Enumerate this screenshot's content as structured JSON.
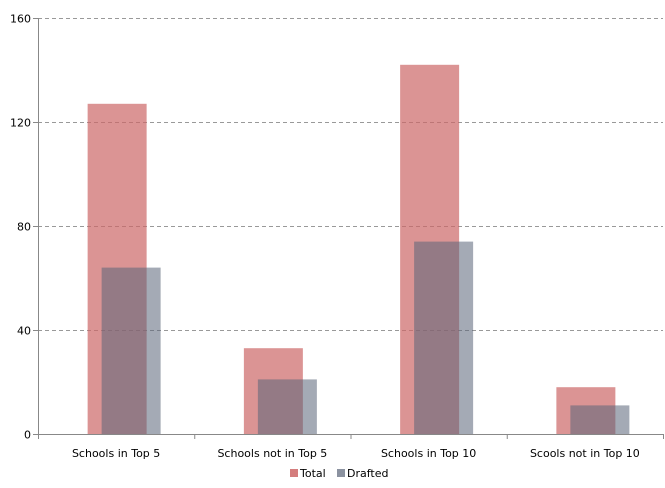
{
  "chart_data": {
    "type": "bar",
    "categories": [
      "Schools in Top 5",
      "Schools not in Top 5",
      "Schools  in Top 10",
      "Scools not in Top 10"
    ],
    "series": [
      {
        "name": "Total",
        "values": [
          127,
          33,
          142,
          18
        ],
        "color": "#cc6666",
        "opacity": 0.7
      },
      {
        "name": "Drafted",
        "values": [
          64,
          21,
          74,
          11
        ],
        "color": "#5a6478",
        "opacity": 0.55
      }
    ],
    "ylim": [
      0,
      160
    ],
    "yticks": [
      0,
      40,
      80,
      120,
      160
    ],
    "grid": true,
    "legend": "bottom-center",
    "title": "",
    "xlabel": "",
    "ylabel": ""
  }
}
